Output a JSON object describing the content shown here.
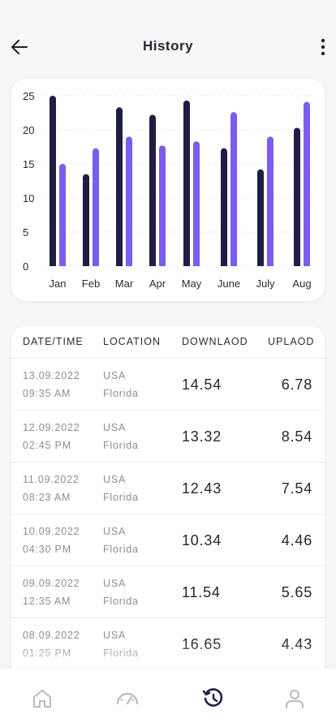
{
  "header": {
    "title": "History",
    "back_icon": "arrow-left-icon",
    "menu_icon": "more-vertical-icon"
  },
  "chart_data": {
    "type": "bar",
    "categories": [
      "Jan",
      "Feb",
      "Mar",
      "Apr",
      "May",
      "June",
      "July",
      "Aug"
    ],
    "series": [
      {
        "values": [
          25,
          13.5,
          23.3,
          22.2,
          24.3,
          17.3,
          14.2,
          20.3
        ],
        "color": "#1f1d45"
      },
      {
        "values": [
          15,
          17.3,
          19,
          17.7,
          18.3,
          22.6,
          19,
          24.1
        ],
        "color": "#7b5cf0"
      }
    ],
    "yticks": [
      "0",
      "5",
      "10",
      "15",
      "20",
      "25"
    ],
    "ylim": [
      0,
      25
    ],
    "grid": true
  },
  "table": {
    "headers": [
      "DATE/TIME",
      "LOCATION",
      "DOWNLAOD",
      "UPLAOD"
    ],
    "rows": [
      {
        "date": "13.09.2022",
        "time": "09:35 AM",
        "country": "USA",
        "region": "Florida",
        "download": "14.54",
        "upload": "6.78"
      },
      {
        "date": "12.09.2022",
        "time": "02:45 PM",
        "country": "USA",
        "region": "Florida",
        "download": "13.32",
        "upload": "8.54"
      },
      {
        "date": "11.09.2022",
        "time": "08:23 AM",
        "country": "USA",
        "region": "Florida",
        "download": "12.43",
        "upload": "7.54"
      },
      {
        "date": "10.09.2022",
        "time": "04:30 PM",
        "country": "USA",
        "region": "Florida",
        "download": "10.34",
        "upload": "4.46"
      },
      {
        "date": "09.09.2022",
        "time": "12:35 AM",
        "country": "USA",
        "region": "Florida",
        "download": "11.54",
        "upload": "5.65"
      },
      {
        "date": "08.09.2022",
        "time": "01:25 PM",
        "country": "USA",
        "region": "Florida",
        "download": "16.65",
        "upload": "4.43"
      }
    ]
  },
  "nav": {
    "items": [
      {
        "icon": "home-icon",
        "active": false
      },
      {
        "icon": "speedometer-icon",
        "active": false
      },
      {
        "icon": "history-icon",
        "active": true
      },
      {
        "icon": "user-icon",
        "active": false
      }
    ],
    "active_color": "#1f1d45",
    "inactive_color": "#b9bac0"
  }
}
